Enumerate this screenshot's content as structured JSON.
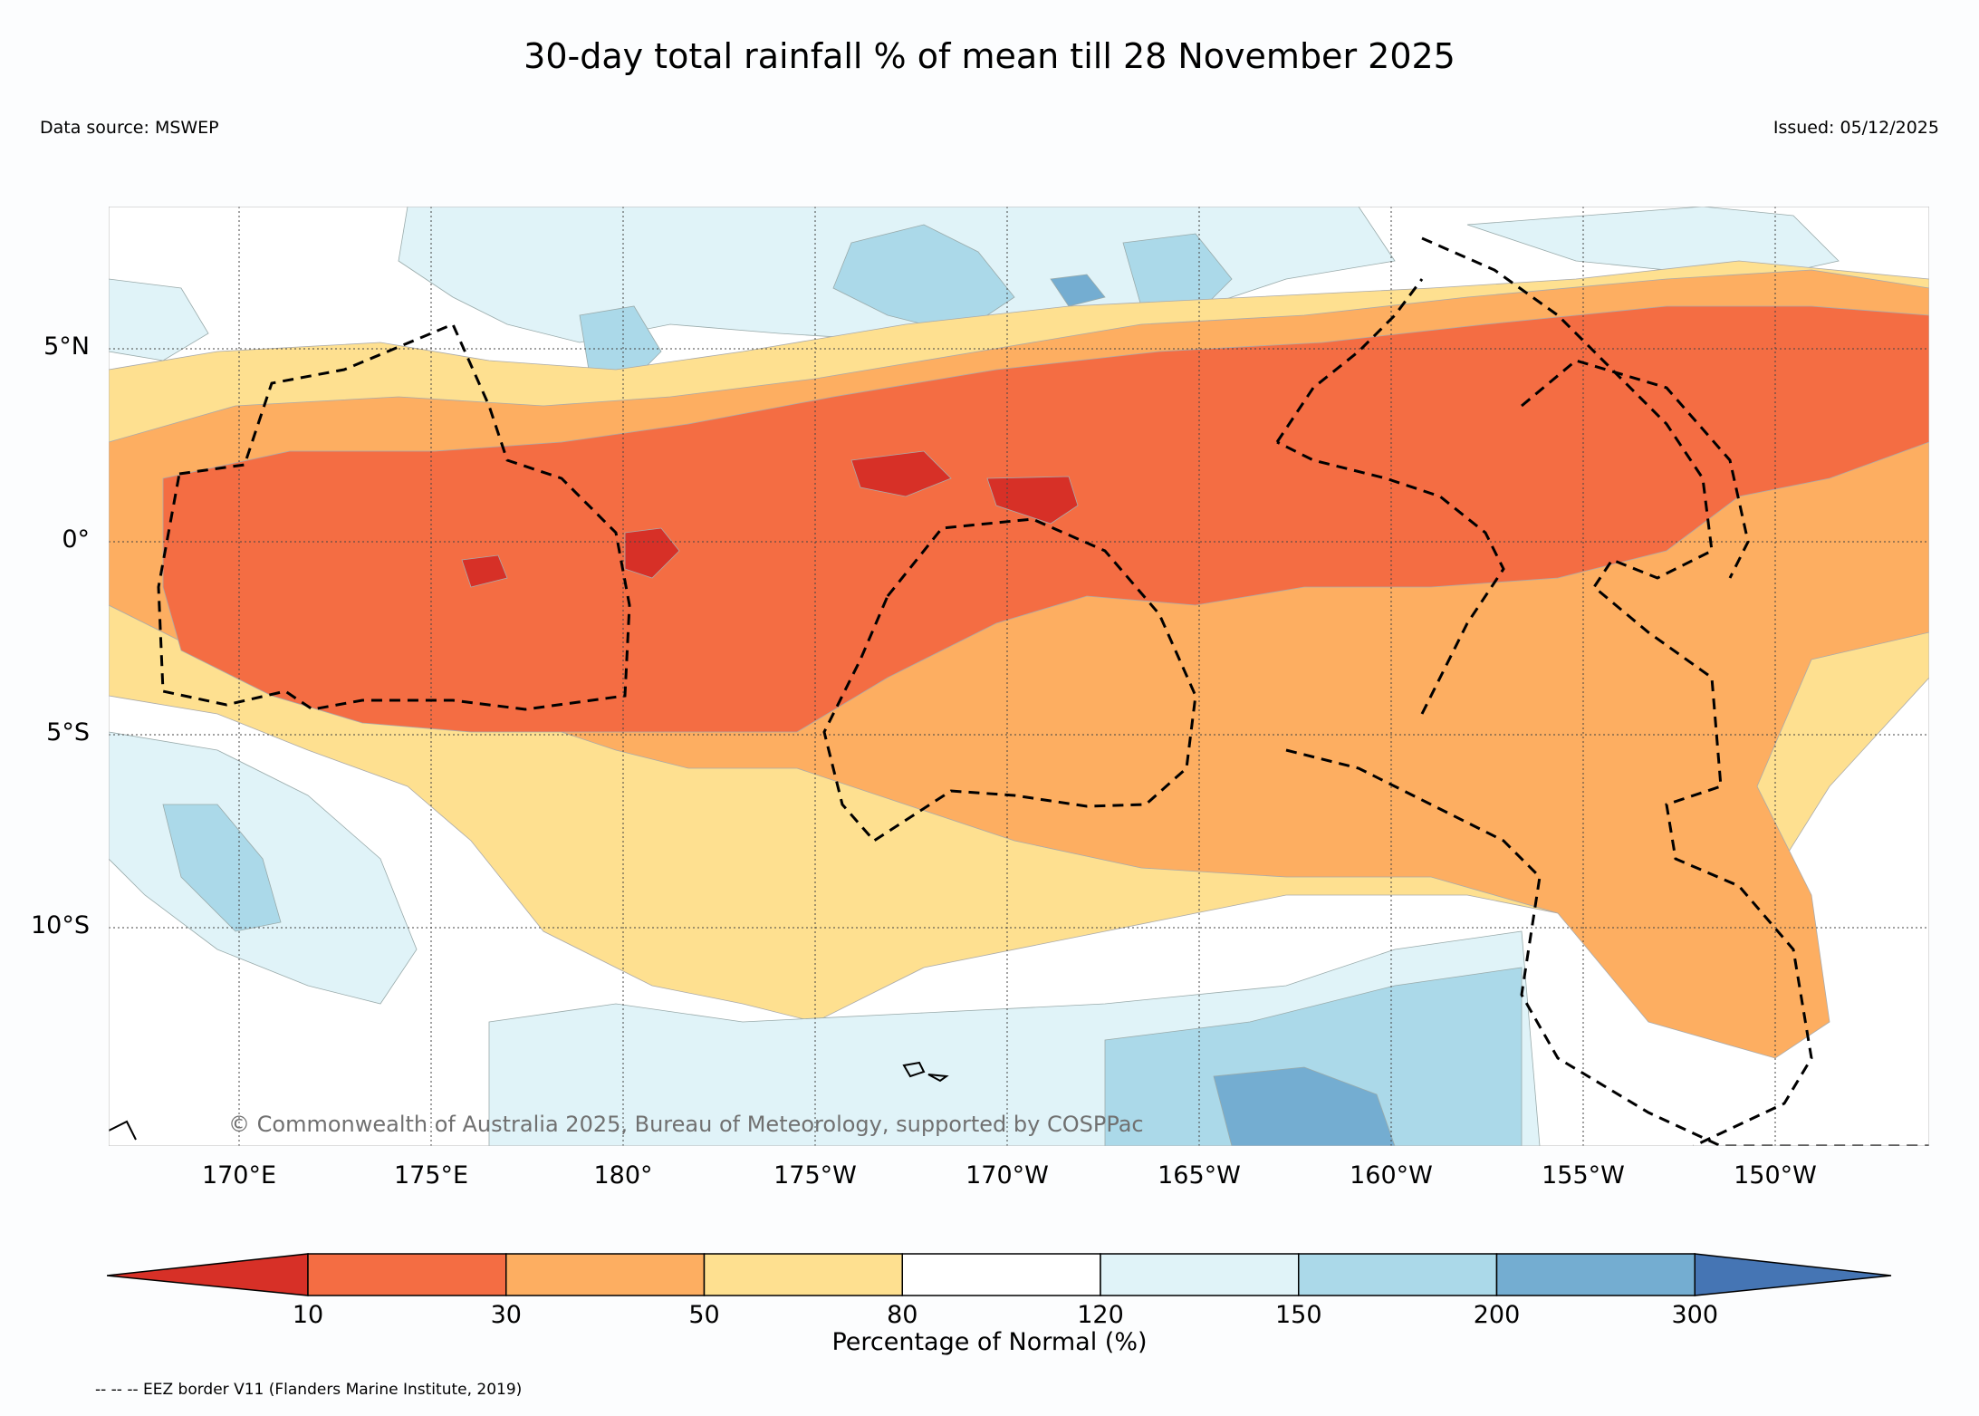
{
  "title": "30-day total rainfall % of mean till 28 November 2025",
  "data_source": "Data source: MSWEP",
  "issued": "Issued: 05/12/2025",
  "copyright": "© Commonwealth of Australia 2025, Bureau of Meteorology, supported by COSPPac",
  "footer": "-- -- -- EEZ border V11 (Flanders Marine Institute, 2019)",
  "map": {
    "lat_ticks": [
      "5°N",
      "0°",
      "5°S",
      "10°S"
    ],
    "lon_ticks": [
      "170°E",
      "175°E",
      "180°",
      "175°W",
      "170°W",
      "165°W",
      "160°W",
      "155°W",
      "150°W"
    ]
  },
  "colorbar": {
    "title": "Percentage of Normal (%)",
    "ticks": [
      "10",
      "30",
      "50",
      "80",
      "120",
      "150",
      "200",
      "300"
    ],
    "colors": [
      "#d73027",
      "#f46d43",
      "#fdae61",
      "#fee090",
      "#ffffff",
      "#e0f3f8",
      "#abd9e9",
      "#74add1",
      "#4575b4"
    ]
  }
}
